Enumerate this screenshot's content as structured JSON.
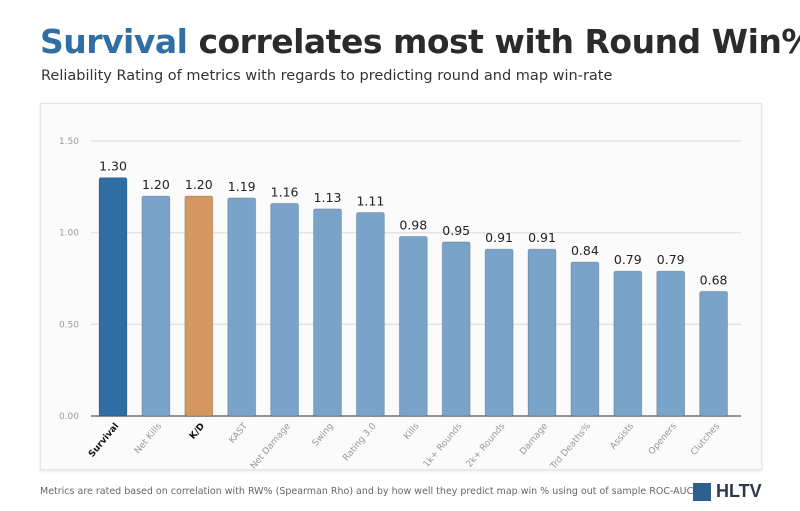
{
  "header": {
    "title_highlight": "Survival",
    "title_rest": " correlates most with Round Win%",
    "subtitle": "Reliability Rating of metrics with regards to predicting round and map win-rate"
  },
  "footnote": "Metrics are rated based on correlation with RW% (Spearman Rho) and by how well they predict map win % using out of sample ROC-AUC.",
  "logo": {
    "text": "HLTV"
  },
  "chart_data": {
    "type": "bar",
    "categories": [
      "Survival",
      "Net Kills",
      "K/D",
      "KAST",
      "Net Damage",
      "Swing",
      "Rating 3.0",
      "Kills",
      "1k+ Rounds",
      "2k+ Rounds",
      "Damage",
      "Trd Deaths%",
      "Assists",
      "Openers",
      "Clutches"
    ],
    "values": [
      1.3,
      1.2,
      1.2,
      1.19,
      1.16,
      1.13,
      1.11,
      0.98,
      0.95,
      0.91,
      0.91,
      0.84,
      0.79,
      0.79,
      0.68
    ],
    "data_labels": [
      "1.30",
      "1.20",
      "1.20",
      "1.19",
      "1.16",
      "1.13",
      "1.11",
      "0.98",
      "0.95",
      "0.91",
      "0.91",
      "0.84",
      "0.79",
      "0.79",
      "0.68"
    ],
    "highlight": {
      "Survival": "#2e6ea4",
      "K/D": "#d4975f"
    },
    "bold_categories": [
      "Survival",
      "K/D"
    ],
    "default_color": "#79a3c8",
    "yticks": [
      "0.00",
      "0.50",
      "1.00",
      "1.50"
    ],
    "ylim": [
      0,
      1.5
    ],
    "grid": true,
    "xlabel": "",
    "ylabel": ""
  }
}
